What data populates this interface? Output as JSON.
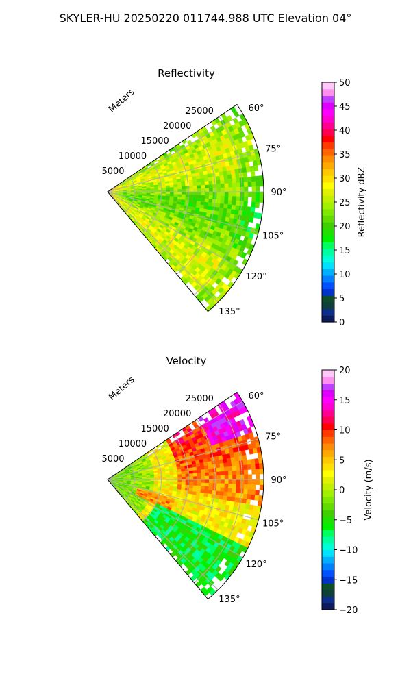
{
  "figure": {
    "title": "SKYLER-HU  20250220  011744.988 UTC Elevation 04°"
  },
  "chart_data": [
    {
      "type": "heatmap",
      "projection": "polar-sector",
      "title": "Reflectivity",
      "r_axis_label": "Meters",
      "r_ticks": [
        5000,
        10000,
        15000,
        20000,
        25000
      ],
      "r_tick_labels": [
        "5000",
        "10000",
        "15000",
        "20000",
        "25000"
      ],
      "r_max": 29000,
      "theta_range_deg": [
        56,
        140
      ],
      "theta_ticks": [
        60,
        75,
        90,
        105,
        120,
        135
      ],
      "theta_tick_labels": [
        "60°",
        "75°",
        "90°",
        "105°",
        "120°",
        "135°"
      ],
      "grid": true,
      "colorbar": {
        "label": "Reflectivity dBZ",
        "range": [
          0,
          50
        ],
        "ticks": [
          0,
          5,
          10,
          15,
          20,
          25,
          30,
          35,
          40,
          45,
          50
        ],
        "tick_labels": [
          "0",
          "5",
          "10",
          "15",
          "20",
          "25",
          "30",
          "35",
          "40",
          "45",
          "50"
        ],
        "colors": [
          "#0d1a5c",
          "#0c2e8a",
          "#0e3f3a",
          "#0d4d2a",
          "#0033cc",
          "#0050ff",
          "#0080ff",
          "#00b0ff",
          "#00e0ff",
          "#00ffd8",
          "#00ffa0",
          "#00ff60",
          "#00f000",
          "#20e000",
          "#40d000",
          "#60dc00",
          "#80e800",
          "#a0f000",
          "#c0f000",
          "#e0f000",
          "#ffff00",
          "#ffe000",
          "#ffc800",
          "#ffa800",
          "#ff8c00",
          "#ff6400",
          "#ff3c00",
          "#ff0000",
          "#ff0050",
          "#ff0090",
          "#ff00d0",
          "#ff00ff",
          "#dd00ff",
          "#c040ff",
          "#ff90f0",
          "#ffc8f8"
        ],
        "extent_note": "field values approximate"
      },
      "field": {
        "description_values_range_dbz": [
          18,
          34
        ]
      }
    },
    {
      "type": "heatmap",
      "projection": "polar-sector",
      "title": "Velocity",
      "r_axis_label": "Meters",
      "r_ticks": [
        5000,
        10000,
        15000,
        20000,
        25000
      ],
      "r_tick_labels": [
        "5000",
        "10000",
        "15000",
        "20000",
        "25000"
      ],
      "r_max": 29000,
      "theta_range_deg": [
        56,
        140
      ],
      "theta_ticks": [
        60,
        75,
        90,
        105,
        120,
        135
      ],
      "theta_tick_labels": [
        "60°",
        "75°",
        "90°",
        "105°",
        "120°",
        "135°"
      ],
      "grid": true,
      "colorbar": {
        "label": "Velocity (m/s)",
        "range": [
          -20,
          20
        ],
        "ticks": [
          -20,
          -15,
          -10,
          -5,
          0,
          5,
          10,
          15,
          20
        ],
        "tick_labels": [
          "−20",
          "−15",
          "−10",
          "−5",
          "0",
          "5",
          "10",
          "15",
          "20"
        ],
        "colors": [
          "#0d1a5c",
          "#0c2e8a",
          "#0e3f3a",
          "#0d4d2a",
          "#0033cc",
          "#0050ff",
          "#0080ff",
          "#00b0ff",
          "#00e0ff",
          "#00ffd8",
          "#00ffa0",
          "#00ff60",
          "#00f000",
          "#20e000",
          "#40d000",
          "#60dc00",
          "#80e800",
          "#a0f000",
          "#c0f000",
          "#e0f000",
          "#ffff00",
          "#ffe000",
          "#ffc800",
          "#ffa800",
          "#ff8c00",
          "#ff6400",
          "#ff3c00",
          "#ff0000",
          "#ff0050",
          "#ff0090",
          "#ff00d0",
          "#ff00ff",
          "#dd00ff",
          "#c040ff",
          "#ff90f0",
          "#ffc8f8"
        ]
      },
      "field": {
        "description_values_range_ms": [
          -10,
          18
        ]
      }
    }
  ]
}
